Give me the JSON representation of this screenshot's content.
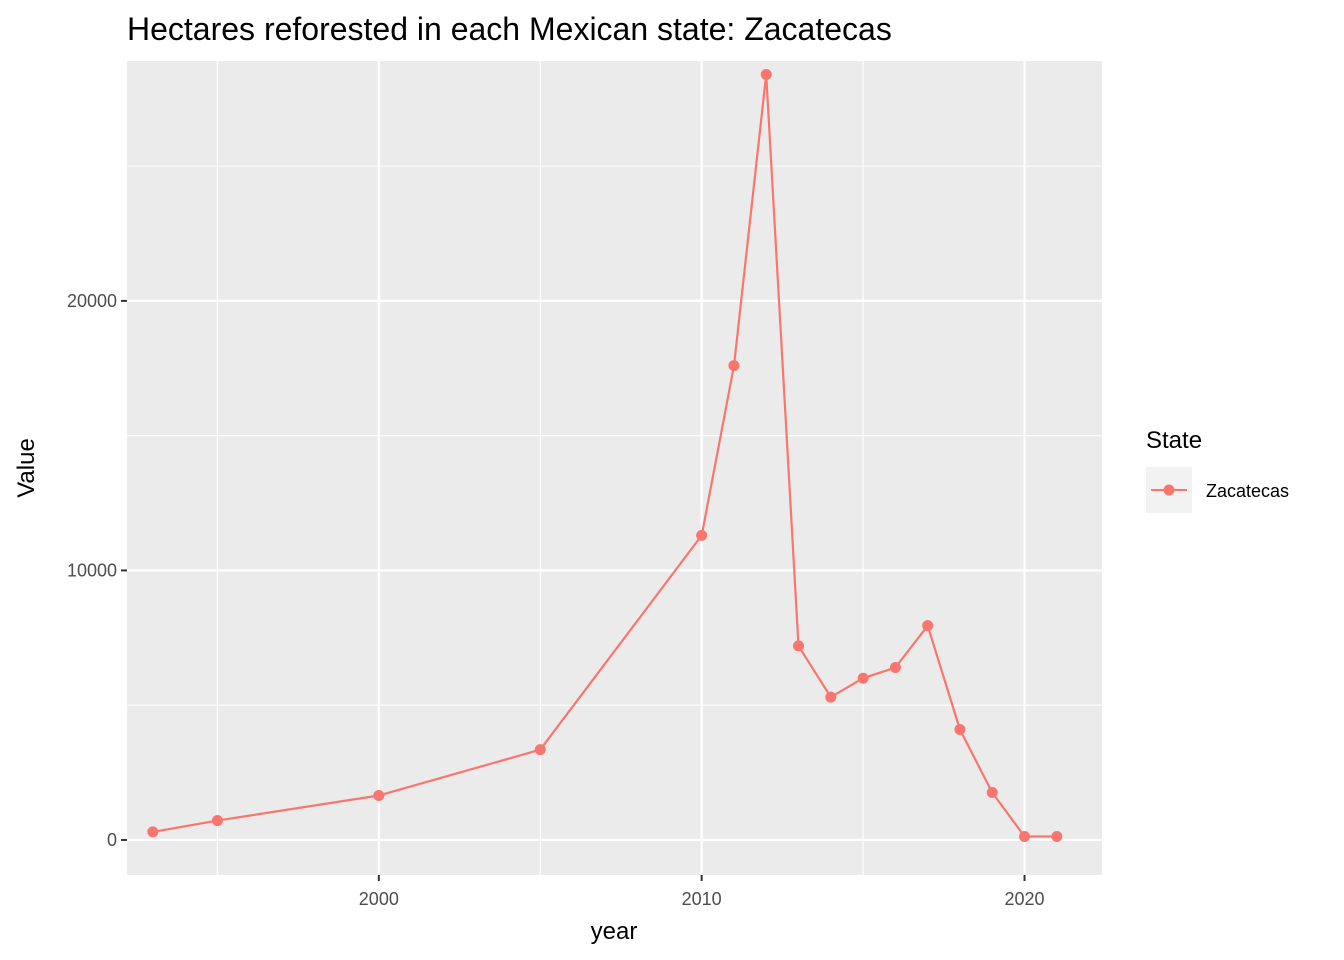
{
  "chart_data": {
    "type": "line",
    "title": "Hectares reforested in each Mexican state: Zacatecas",
    "xlabel": "year",
    "ylabel": "Value",
    "xlim": [
      1992.2,
      2022.4
    ],
    "ylim": [
      -1300,
      28900
    ],
    "x_ticks": [
      2000,
      2010,
      2020
    ],
    "x_tick_labels": [
      "2000",
      "2010",
      "2020"
    ],
    "y_ticks": [
      0,
      10000,
      20000
    ],
    "y_tick_labels": [
      "0",
      "10000",
      "20000"
    ],
    "x_minor": [
      1995,
      2005,
      2015
    ],
    "y_minor": [
      5000,
      15000,
      25000
    ],
    "grid": true,
    "legend": {
      "title": "State",
      "placement": "right"
    },
    "series": [
      {
        "name": "Zacatecas",
        "color": "#F8766D",
        "x": [
          1993,
          1995,
          2000,
          2005,
          2010,
          2011,
          2012,
          2013,
          2014,
          2015,
          2016,
          2017,
          2018,
          2019,
          2020,
          2021
        ],
        "y": [
          300,
          720,
          1650,
          3350,
          11300,
          17600,
          28400,
          7200,
          5300,
          6000,
          6400,
          7950,
          4100,
          1760,
          130,
          130
        ]
      }
    ]
  }
}
